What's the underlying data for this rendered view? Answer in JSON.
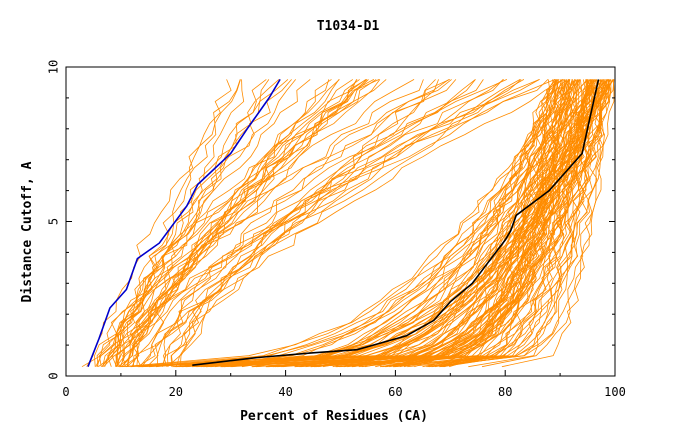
{
  "chart_data": {
    "type": "line",
    "title": "T1034-D1",
    "xlabel": "Percent of Residues (CA)",
    "ylabel": "Distance Cutoff, A",
    "xlim": [
      0,
      100
    ],
    "ylim": [
      0,
      10
    ],
    "x_ticks": [
      "0",
      "20",
      "40",
      "60",
      "80",
      "100"
    ],
    "y_ticks": [
      "0",
      "5",
      "10"
    ],
    "grid": false,
    "legend": "none",
    "colors": {
      "background_curves": "#ff8c00",
      "highlight_blue": "#0000cc",
      "highlight_black": "#000000"
    },
    "series": [
      {
        "color": "#0000cc",
        "points": [
          [
            4,
            0.3
          ],
          [
            6,
            1.2
          ],
          [
            8,
            2.2
          ],
          [
            11,
            2.8
          ],
          [
            13,
            3.8
          ],
          [
            17,
            4.3
          ],
          [
            22,
            5.5
          ],
          [
            24,
            6.2
          ],
          [
            30,
            7.2
          ],
          [
            33,
            8.0
          ],
          [
            37,
            9.0
          ],
          [
            39,
            9.6
          ]
        ]
      },
      {
        "color": "#000000",
        "points": [
          [
            23,
            0.35
          ],
          [
            35,
            0.6
          ],
          [
            45,
            0.75
          ],
          [
            53,
            0.85
          ],
          [
            62,
            1.3
          ],
          [
            67,
            1.8
          ],
          [
            70,
            2.4
          ],
          [
            74,
            3.0
          ],
          [
            77,
            3.7
          ],
          [
            80,
            4.4
          ],
          [
            81,
            4.7
          ],
          [
            82,
            5.2
          ],
          [
            85,
            5.6
          ],
          [
            88,
            6.0
          ],
          [
            92,
            6.8
          ],
          [
            94,
            7.2
          ],
          [
            95,
            8.0
          ],
          [
            96,
            8.8
          ],
          [
            97,
            9.6
          ]
        ]
      }
    ]
  }
}
